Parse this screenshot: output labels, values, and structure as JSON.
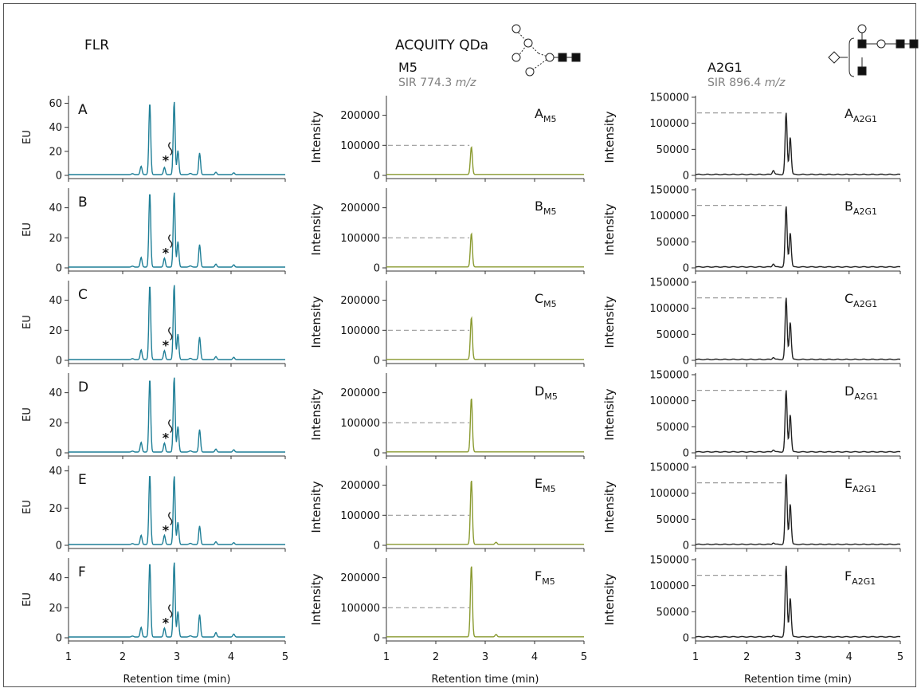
{
  "header": {
    "flr_title": "FLR",
    "qda_title": "ACQUITY QDa",
    "m5_title": "M5",
    "m5_sir": "SIR 774.3",
    "m5_sir_unit": "m/z",
    "a2g1_title": "A2G1",
    "a2g1_sir": "SIR 896.4",
    "a2g1_sir_unit": "m/z"
  },
  "colors": {
    "flr": "#1f7f97",
    "m5": "#8a9a30",
    "a2g1": "#222222",
    "dash": "#999999"
  },
  "chart_data": [
    {
      "type": "line",
      "column": "FLR",
      "ylabel": "EU",
      "xlabel": "Retention time (min)",
      "xlim": [
        1,
        5
      ],
      "xticks": [
        1,
        2,
        3,
        4,
        5
      ],
      "peak_marker": "*",
      "panels": [
        {
          "label": "A",
          "ylim": [
            0,
            65
          ],
          "yticks": [
            0,
            20,
            40,
            60
          ],
          "peaks": [
            [
              2.34,
              7
            ],
            [
              2.5,
              60
            ],
            [
              2.77,
              6
            ],
            [
              2.95,
              61
            ],
            [
              3.02,
              20
            ],
            [
              3.42,
              18
            ],
            [
              3.72,
              2
            ],
            [
              4.05,
              1.5
            ]
          ]
        },
        {
          "label": "B",
          "ylim": [
            0,
            52
          ],
          "yticks": [
            0,
            20,
            40
          ],
          "peaks": [
            [
              2.34,
              6.5
            ],
            [
              2.5,
              50
            ],
            [
              2.77,
              6
            ],
            [
              2.95,
              50
            ],
            [
              3.02,
              17
            ],
            [
              3.42,
              15
            ],
            [
              3.72,
              2
            ],
            [
              4.05,
              1.5
            ]
          ]
        },
        {
          "label": "C",
          "ylim": [
            0,
            52
          ],
          "yticks": [
            0,
            20,
            40
          ],
          "peaks": [
            [
              2.34,
              6.5
            ],
            [
              2.5,
              50
            ],
            [
              2.77,
              6
            ],
            [
              2.95,
              50
            ],
            [
              3.02,
              17
            ],
            [
              3.42,
              15
            ],
            [
              3.72,
              2
            ],
            [
              4.05,
              1.5
            ]
          ]
        },
        {
          "label": "D",
          "ylim": [
            0,
            52
          ],
          "yticks": [
            0,
            20,
            40
          ],
          "peaks": [
            [
              2.34,
              6.5
            ],
            [
              2.5,
              49
            ],
            [
              2.77,
              6
            ],
            [
              2.95,
              50
            ],
            [
              3.02,
              17
            ],
            [
              3.42,
              15
            ],
            [
              3.72,
              2
            ],
            [
              4.05,
              1.5
            ]
          ]
        },
        {
          "label": "E",
          "ylim": [
            0,
            42
          ],
          "yticks": [
            0,
            20,
            40
          ],
          "peaks": [
            [
              2.34,
              5
            ],
            [
              2.5,
              38
            ],
            [
              2.77,
              5
            ],
            [
              2.95,
              37
            ],
            [
              3.02,
              12
            ],
            [
              3.42,
              10
            ],
            [
              3.72,
              1.5
            ],
            [
              4.05,
              1
            ]
          ]
        },
        {
          "label": "F",
          "ylim": [
            0,
            52
          ],
          "yticks": [
            0,
            20,
            40
          ],
          "peaks": [
            [
              2.34,
              6.5
            ],
            [
              2.5,
              50
            ],
            [
              2.77,
              6
            ],
            [
              2.95,
              50
            ],
            [
              3.02,
              17
            ],
            [
              3.42,
              15
            ],
            [
              3.72,
              3
            ],
            [
              4.05,
              2
            ]
          ]
        }
      ]
    },
    {
      "type": "line",
      "column": "M5",
      "ylabel": "Intensity",
      "xlabel": "Retention time (min)",
      "xlim": [
        1,
        5
      ],
      "xticks": [
        1,
        2,
        3,
        4,
        5
      ],
      "ylim": [
        0,
        260000
      ],
      "yticks": [
        0,
        100000,
        200000
      ],
      "reference_line": 100000,
      "subscript": "M5",
      "panels": [
        {
          "label": "A",
          "peaks": [
            [
              2.72,
              92000
            ]
          ]
        },
        {
          "label": "B",
          "peaks": [
            [
              2.72,
              112000
            ]
          ]
        },
        {
          "label": "C",
          "peaks": [
            [
              2.72,
              140000
            ]
          ]
        },
        {
          "label": "D",
          "peaks": [
            [
              2.72,
              180000
            ]
          ]
        },
        {
          "label": "E",
          "peaks": [
            [
              2.72,
              215000
            ],
            [
              3.22,
              7000
            ]
          ]
        },
        {
          "label": "F",
          "peaks": [
            [
              2.72,
              238000
            ],
            [
              3.22,
              8000
            ]
          ]
        }
      ]
    },
    {
      "type": "line",
      "column": "A2G1",
      "ylabel": "Intensity",
      "xlabel": "Retention time (min)",
      "xlim": [
        1,
        5
      ],
      "xticks": [
        1,
        2,
        3,
        4,
        5
      ],
      "ylim": [
        0,
        150000
      ],
      "yticks": [
        0,
        50000,
        100000,
        150000
      ],
      "reference_line": 120000,
      "subscript": "A2G1",
      "panels": [
        {
          "label": "A",
          "peaks": [
            [
              2.52,
              8000
            ],
            [
              2.77,
              118000
            ],
            [
              2.85,
              72000
            ]
          ]
        },
        {
          "label": "B",
          "peaks": [
            [
              2.52,
              6000
            ],
            [
              2.77,
              116000
            ],
            [
              2.85,
              66000
            ]
          ]
        },
        {
          "label": "C",
          "peaks": [
            [
              2.52,
              4000
            ],
            [
              2.77,
              118000
            ],
            [
              2.85,
              72000
            ]
          ]
        },
        {
          "label": "D",
          "peaks": [
            [
              2.52,
              4000
            ],
            [
              2.77,
              118000
            ],
            [
              2.85,
              72000
            ]
          ]
        },
        {
          "label": "E",
          "peaks": [
            [
              2.52,
              3000
            ],
            [
              2.77,
              134000
            ],
            [
              2.85,
              78000
            ]
          ]
        },
        {
          "label": "F",
          "peaks": [
            [
              2.52,
              3000
            ],
            [
              2.77,
              136000
            ],
            [
              2.85,
              75000
            ]
          ]
        }
      ]
    }
  ]
}
